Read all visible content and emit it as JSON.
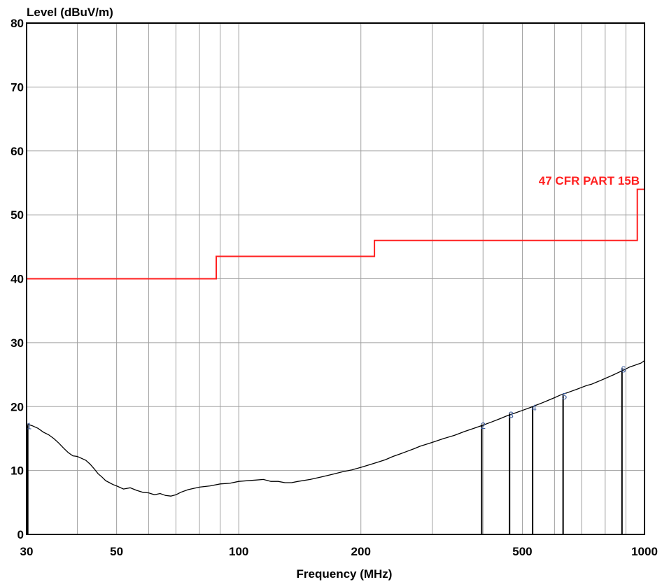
{
  "chart_data": {
    "type": "line",
    "title": "",
    "xlabel": "Frequency (MHz)",
    "ylabel": "Level (dBuV/m)",
    "x_scale": "log",
    "xlim": [
      30,
      1000
    ],
    "ylim": [
      0,
      80
    ],
    "grid": true,
    "x_ticks": [
      30,
      50,
      100,
      200,
      500,
      1000
    ],
    "y_ticks": [
      0,
      10,
      20,
      30,
      40,
      50,
      60,
      70,
      80
    ],
    "x_grid": [
      30,
      40,
      50,
      60,
      70,
      80,
      90,
      100,
      200,
      300,
      400,
      500,
      600,
      700,
      800,
      900,
      1000
    ],
    "colors": {
      "limit": "#ff2020",
      "measurement": "#000000",
      "grid": "#a0a0a0"
    },
    "series": [
      {
        "name": "47 CFR PART 15B",
        "step": true,
        "points": [
          [
            30,
            40
          ],
          [
            88,
            40
          ],
          [
            88,
            43.5
          ],
          [
            216,
            43.5
          ],
          [
            216,
            46
          ],
          [
            960,
            46
          ],
          [
            960,
            54
          ],
          [
            1000,
            54
          ]
        ]
      },
      {
        "name": "",
        "points": [
          [
            30,
            17.3
          ],
          [
            31,
            17
          ],
          [
            32,
            16.6
          ],
          [
            33,
            16
          ],
          [
            34,
            15.6
          ],
          [
            35,
            15
          ],
          [
            36,
            14.3
          ],
          [
            37,
            13.5
          ],
          [
            38,
            12.8
          ],
          [
            39,
            12.3
          ],
          [
            40,
            12.2
          ],
          [
            41,
            11.9
          ],
          [
            42,
            11.6
          ],
          [
            43,
            11
          ],
          [
            44,
            10.3
          ],
          [
            45,
            9.5
          ],
          [
            46,
            9
          ],
          [
            47,
            8.4
          ],
          [
            48,
            8.1
          ],
          [
            49,
            7.8
          ],
          [
            50,
            7.6
          ],
          [
            52,
            7.1
          ],
          [
            54,
            7.3
          ],
          [
            56,
            6.9
          ],
          [
            58,
            6.6
          ],
          [
            60,
            6.5
          ],
          [
            62,
            6.2
          ],
          [
            64,
            6.4
          ],
          [
            66,
            6.1
          ],
          [
            68,
            6
          ],
          [
            70,
            6.2
          ],
          [
            72,
            6.6
          ],
          [
            75,
            7
          ],
          [
            80,
            7.4
          ],
          [
            85,
            7.6
          ],
          [
            90,
            7.9
          ],
          [
            95,
            8
          ],
          [
            100,
            8.3
          ],
          [
            105,
            8.4
          ],
          [
            110,
            8.5
          ],
          [
            115,
            8.6
          ],
          [
            120,
            8.3
          ],
          [
            125,
            8.3
          ],
          [
            130,
            8.1
          ],
          [
            135,
            8.1
          ],
          [
            140,
            8.3
          ],
          [
            150,
            8.6
          ],
          [
            160,
            9
          ],
          [
            170,
            9.4
          ],
          [
            180,
            9.8
          ],
          [
            190,
            10.1
          ],
          [
            200,
            10.5
          ],
          [
            210,
            10.9
          ],
          [
            220,
            11.3
          ],
          [
            230,
            11.7
          ],
          [
            240,
            12.2
          ],
          [
            250,
            12.6
          ],
          [
            260,
            13
          ],
          [
            270,
            13.4
          ],
          [
            280,
            13.8
          ],
          [
            300,
            14.4
          ],
          [
            320,
            15
          ],
          [
            340,
            15.5
          ],
          [
            360,
            16.1
          ],
          [
            380,
            16.6
          ],
          [
            400,
            17.1
          ],
          [
            420,
            17.6
          ],
          [
            440,
            18.1
          ],
          [
            460,
            18.6
          ],
          [
            480,
            19
          ],
          [
            500,
            19.4
          ],
          [
            520,
            19.8
          ],
          [
            540,
            20.2
          ],
          [
            560,
            20.6
          ],
          [
            580,
            21
          ],
          [
            600,
            21.4
          ],
          [
            620,
            21.8
          ],
          [
            640,
            22.1
          ],
          [
            660,
            22.4
          ],
          [
            680,
            22.7
          ],
          [
            700,
            23
          ],
          [
            720,
            23.3
          ],
          [
            740,
            23.5
          ],
          [
            760,
            23.8
          ],
          [
            780,
            24.1
          ],
          [
            800,
            24.4
          ],
          [
            820,
            24.7
          ],
          [
            840,
            25
          ],
          [
            860,
            25.3
          ],
          [
            880,
            25.6
          ],
          [
            900,
            25.9
          ],
          [
            920,
            26.2
          ],
          [
            940,
            26.4
          ],
          [
            960,
            26.6
          ],
          [
            980,
            26.8
          ],
          [
            1000,
            27.2
          ]
        ]
      }
    ],
    "markers": [
      {
        "label": "1",
        "x": 30.2,
        "y": 17.1
      },
      {
        "label": "2",
        "x": 397,
        "y": 17.2
      },
      {
        "label": "3",
        "x": 465,
        "y": 18.9
      },
      {
        "label": "4",
        "x": 530,
        "y": 20
      },
      {
        "label": "5",
        "x": 630,
        "y": 21.8
      },
      {
        "label": "6",
        "x": 880,
        "y": 26
      }
    ]
  }
}
